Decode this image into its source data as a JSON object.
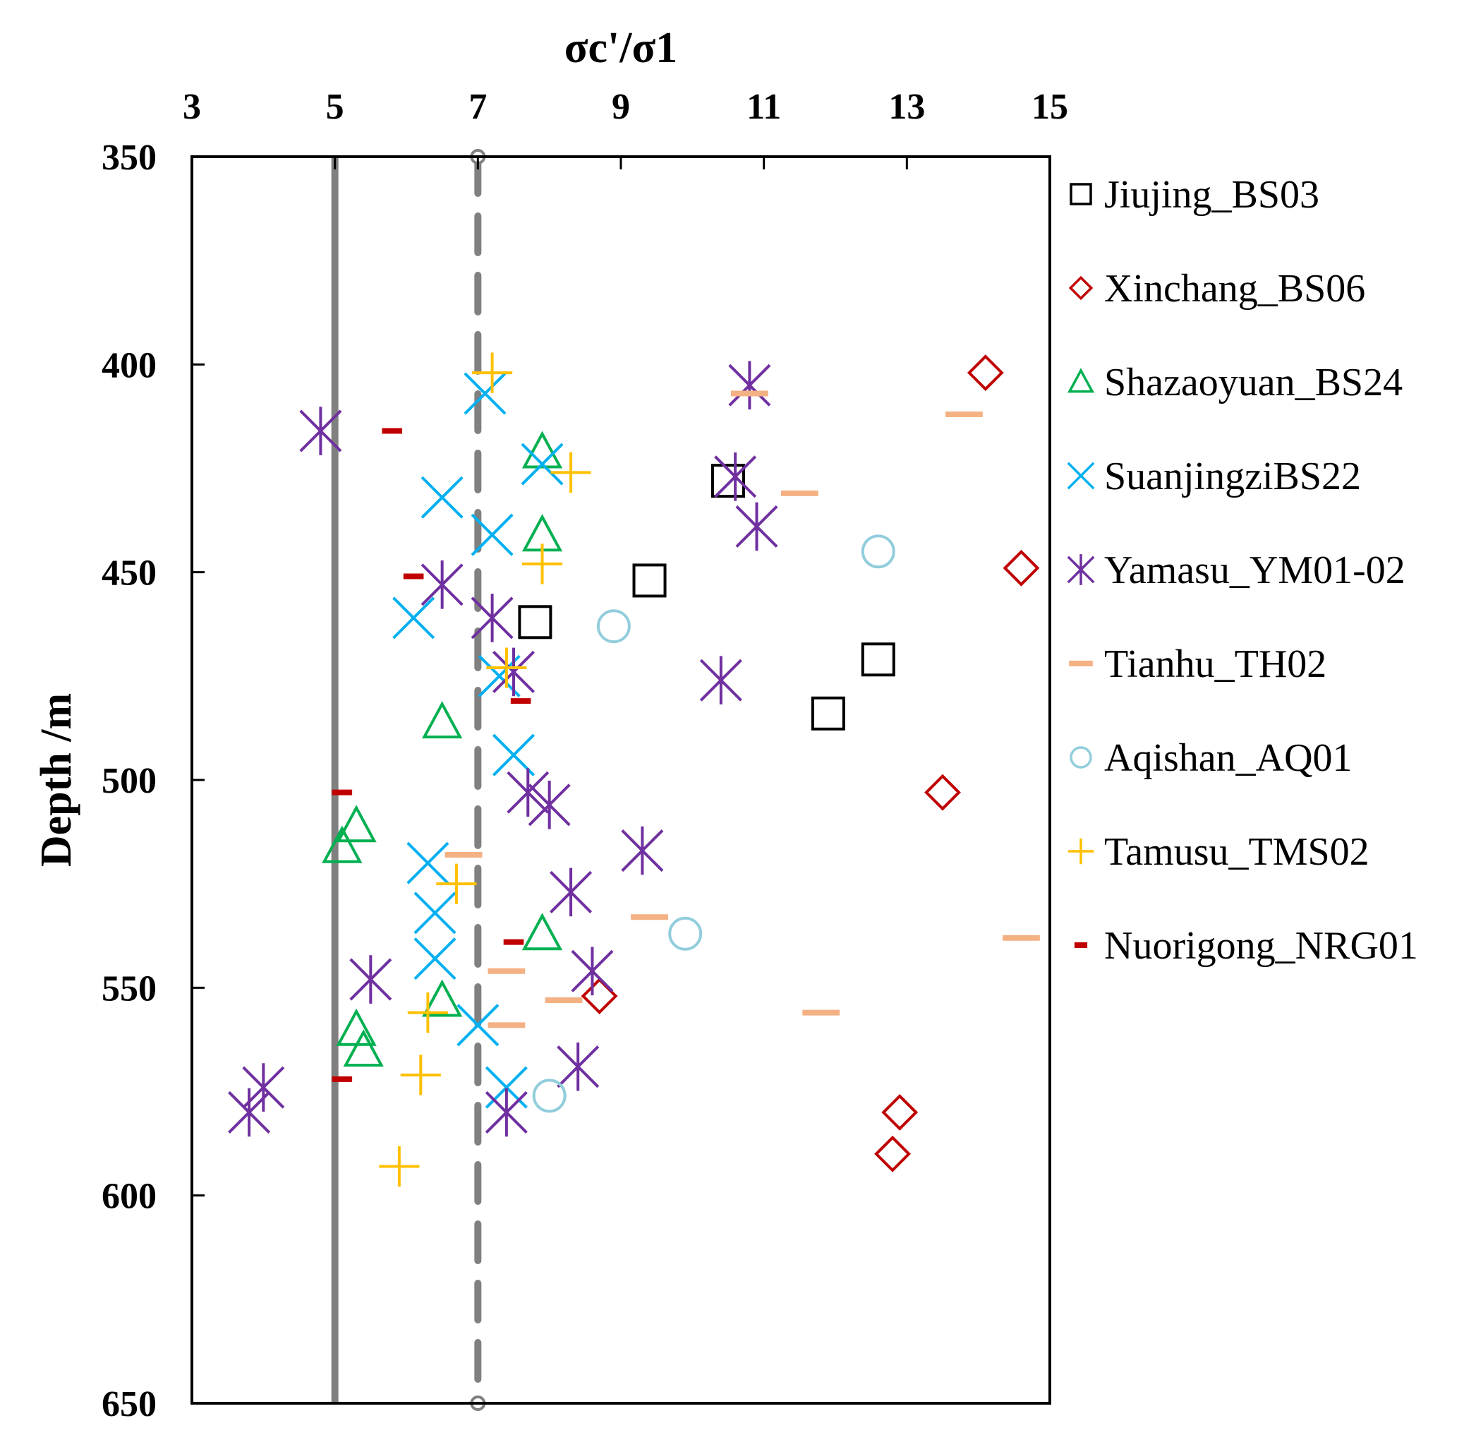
{
  "chart_data": {
    "type": "scatter",
    "xlabel": "σc'/σ1",
    "ylabel": "Depth /m",
    "xlim": [
      3,
      15
    ],
    "ylim": [
      350,
      650
    ],
    "y_inverted": true,
    "x_axis_position": "top",
    "x_ticks": [
      3,
      5,
      7,
      9,
      11,
      13,
      15
    ],
    "y_ticks": [
      350,
      400,
      450,
      500,
      550,
      600,
      650
    ],
    "legend_position": "right",
    "reference_lines": [
      {
        "x": 5,
        "style": "solid",
        "color": "#808080"
      },
      {
        "x": 7,
        "style": "dashed",
        "color": "#808080"
      }
    ],
    "series": [
      {
        "name": "Jiujing_BS03",
        "marker": "square",
        "color": "#000000",
        "points": [
          [
            10.5,
            428
          ],
          [
            9.4,
            452
          ],
          [
            7.8,
            462
          ],
          [
            12.6,
            471
          ],
          [
            11.9,
            484
          ]
        ]
      },
      {
        "name": "Xinchang_BS06",
        "marker": "diamond",
        "color": "#c00000",
        "points": [
          [
            14.1,
            402
          ],
          [
            14.6,
            449
          ],
          [
            13.5,
            503
          ],
          [
            8.7,
            552
          ],
          [
            12.9,
            580
          ],
          [
            12.8,
            590
          ]
        ]
      },
      {
        "name": "Shazaoyuan_BS24",
        "marker": "triangle",
        "color": "#00b050",
        "points": [
          [
            7.9,
            421
          ],
          [
            7.9,
            441
          ],
          [
            6.5,
            486
          ],
          [
            5.3,
            511
          ],
          [
            5.1,
            516
          ],
          [
            7.9,
            537
          ],
          [
            6.5,
            553
          ],
          [
            5.3,
            560
          ],
          [
            5.4,
            565
          ]
        ]
      },
      {
        "name": "SuanjingziBS22",
        "marker": "x",
        "color": "#00b0f0",
        "points": [
          [
            7.1,
            407
          ],
          [
            7.9,
            424
          ],
          [
            6.5,
            432
          ],
          [
            7.2,
            441
          ],
          [
            6.1,
            461
          ],
          [
            7.3,
            475
          ],
          [
            7.5,
            494
          ],
          [
            6.3,
            520
          ],
          [
            6.4,
            532
          ],
          [
            6.4,
            543
          ],
          [
            7.0,
            559
          ],
          [
            7.4,
            574
          ]
        ]
      },
      {
        "name": "Yamasu_YM01-02",
        "marker": "star",
        "color": "#7030a0",
        "points": [
          [
            10.8,
            405
          ],
          [
            4.8,
            416
          ],
          [
            10.6,
            427
          ],
          [
            10.9,
            439
          ],
          [
            6.5,
            453
          ],
          [
            7.2,
            461
          ],
          [
            7.5,
            474
          ],
          [
            10.4,
            476
          ],
          [
            7.7,
            503
          ],
          [
            8.0,
            506
          ],
          [
            9.3,
            517
          ],
          [
            8.3,
            527
          ],
          [
            8.6,
            546
          ],
          [
            5.5,
            548
          ],
          [
            8.4,
            569
          ],
          [
            4.0,
            574
          ],
          [
            3.8,
            580
          ],
          [
            7.4,
            580
          ]
        ]
      },
      {
        "name": "Tianhu_TH02",
        "marker": "dash",
        "color": "#f4b183",
        "points": [
          [
            10.8,
            407
          ],
          [
            13.8,
            412
          ],
          [
            11.5,
            431
          ],
          [
            6.8,
            518
          ],
          [
            9.4,
            533
          ],
          [
            14.6,
            538
          ],
          [
            7.4,
            546
          ],
          [
            8.2,
            553
          ],
          [
            11.8,
            556
          ],
          [
            7.4,
            559
          ]
        ]
      },
      {
        "name": "Aqishan_AQ01",
        "marker": "circle",
        "color": "#92cddc",
        "points": [
          [
            12.6,
            445
          ],
          [
            8.9,
            463
          ],
          [
            9.9,
            537
          ],
          [
            8.0,
            576
          ]
        ]
      },
      {
        "name": "Tamusu_TMS02",
        "marker": "plus",
        "color": "#ffc000",
        "points": [
          [
            7.2,
            402
          ],
          [
            8.3,
            426
          ],
          [
            7.9,
            448
          ],
          [
            7.4,
            473
          ],
          [
            6.7,
            525
          ],
          [
            6.3,
            556
          ],
          [
            6.2,
            571
          ],
          [
            5.9,
            593
          ]
        ]
      },
      {
        "name": "Nuorigong_NRG01",
        "marker": "small-dash",
        "color": "#c00000",
        "points": [
          [
            5.8,
            416
          ],
          [
            6.1,
            451
          ],
          [
            7.6,
            481
          ],
          [
            5.1,
            503
          ],
          [
            7.5,
            539
          ],
          [
            5.1,
            572
          ]
        ]
      }
    ]
  }
}
